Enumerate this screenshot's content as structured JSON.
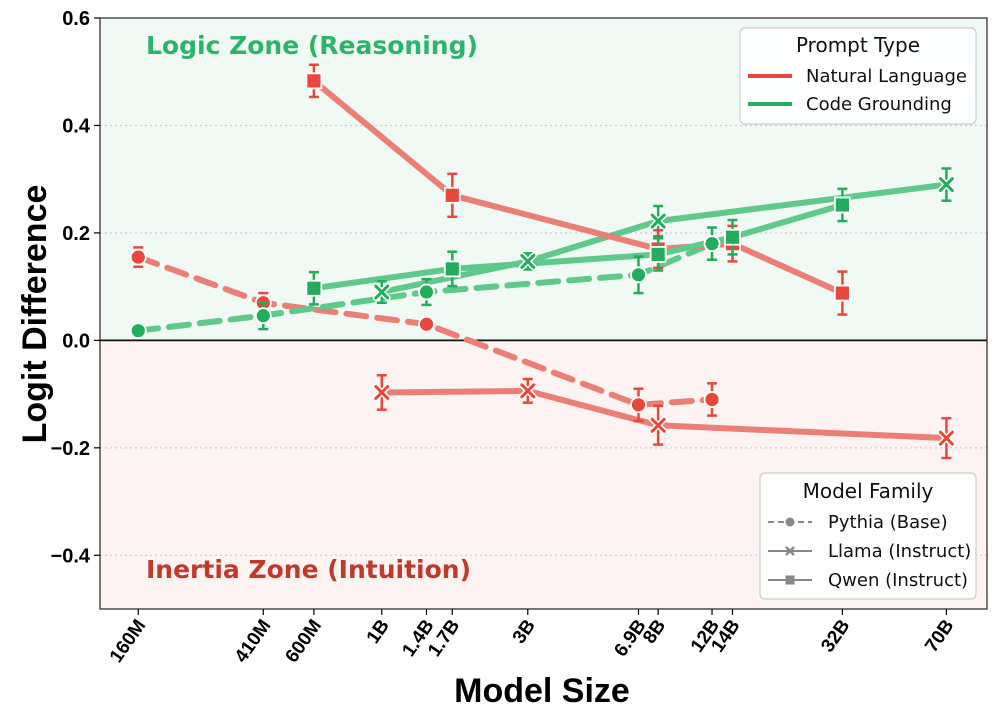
{
  "chart_data": {
    "type": "line",
    "xlabel": "Model Size",
    "ylabel": "Logit Difference",
    "ylim": [
      -0.5,
      0.6
    ],
    "yticks": [
      -0.4,
      -0.2,
      0.0,
      0.2,
      0.4,
      0.6
    ],
    "ytick_labels": [
      "−0.4",
      "−0.2",
      "0.0",
      "0.2",
      "0.4",
      "0.6"
    ],
    "x_scale": "log",
    "xlim_params": [
      120000000.0,
      95000000000.0
    ],
    "xticks": [
      {
        "label": "160M",
        "value": 160000000.0
      },
      {
        "label": "410M",
        "value": 410000000.0
      },
      {
        "label": "600M",
        "value": 600000000.0
      },
      {
        "label": "1B",
        "value": 1000000000.0
      },
      {
        "label": "1.4B",
        "value": 1400000000.0
      },
      {
        "label": "1.7B",
        "value": 1700000000.0
      },
      {
        "label": "3B",
        "value": 3000000000.0
      },
      {
        "label": "6.9B",
        "value": 6900000000.0
      },
      {
        "label": "8B",
        "value": 8000000000.0
      },
      {
        "label": "12B",
        "value": 12000000000.0
      },
      {
        "label": "14B",
        "value": 14000000000.0
      },
      {
        "label": "32B",
        "value": 32000000000.0
      },
      {
        "label": "70B",
        "value": 70000000000.0
      }
    ],
    "zones": {
      "logic": {
        "label": "Logic Zone (Reasoning)",
        "color": "#2db46b",
        "bg": "#f1f9f4"
      },
      "inertia": {
        "label": "Inertia Zone (Intuition)",
        "color": "#c0392b",
        "bg": "#fdf3f2"
      }
    },
    "colors": {
      "natural": "#e8483b",
      "code": "#22ad5c",
      "natural_line": "#ec7f75",
      "code_line": "#5ec98a",
      "family_gray": "#888888"
    },
    "legend_prompt": {
      "title": "Prompt Type",
      "items": [
        {
          "label": "Natural Language",
          "color": "#e8483b"
        },
        {
          "label": "Code Grounding",
          "color": "#22ad5c"
        }
      ]
    },
    "legend_family": {
      "title": "Model Family",
      "items": [
        {
          "label": "Pythia (Base)",
          "dash": true,
          "marker": "circle"
        },
        {
          "label": "Llama (Instruct)",
          "dash": false,
          "marker": "x"
        },
        {
          "label": "Qwen (Instruct)",
          "dash": false,
          "marker": "square"
        }
      ]
    },
    "series": [
      {
        "name": "Pythia (Base) – Natural Language",
        "family": "pythia",
        "prompt": "natural",
        "marker": "circle",
        "dash": true,
        "x": [
          160000000.0,
          410000000.0,
          1400000000.0,
          6900000000.0,
          12000000000.0
        ],
        "y": [
          0.155,
          0.07,
          0.03,
          -0.12,
          -0.11
        ],
        "err": [
          0.018,
          0.018,
          0.006,
          0.03,
          0.03
        ]
      },
      {
        "name": "Pythia (Base) – Code Grounding",
        "family": "pythia",
        "prompt": "code",
        "marker": "circle",
        "dash": true,
        "x": [
          160000000.0,
          410000000.0,
          1400000000.0,
          6900000000.0,
          12000000000.0
        ],
        "y": [
          0.018,
          0.046,
          0.09,
          0.122,
          0.18
        ],
        "err": [
          0.004,
          0.025,
          0.024,
          0.034,
          0.03
        ]
      },
      {
        "name": "Llama (Instruct) – Natural Language",
        "family": "llama",
        "prompt": "natural",
        "marker": "x",
        "dash": false,
        "x": [
          1000000000.0,
          3000000000.0,
          8000000000.0,
          70000000000.0
        ],
        "y": [
          -0.097,
          -0.094,
          -0.158,
          -0.182
        ],
        "err": [
          0.032,
          0.022,
          0.036,
          0.037
        ]
      },
      {
        "name": "Llama (Instruct) – Code Grounding",
        "family": "llama",
        "prompt": "code",
        "marker": "x",
        "dash": false,
        "x": [
          1000000000.0,
          3000000000.0,
          8000000000.0,
          70000000000.0
        ],
        "y": [
          0.09,
          0.147,
          0.222,
          0.29
        ],
        "err": [
          0.02,
          0.015,
          0.028,
          0.03
        ]
      },
      {
        "name": "Qwen (Instruct) – Natural Language",
        "family": "qwen",
        "prompt": "natural",
        "marker": "square",
        "dash": false,
        "x": [
          600000000.0,
          1700000000.0,
          8000000000.0,
          14000000000.0,
          32000000000.0
        ],
        "y": [
          0.483,
          0.27,
          0.17,
          0.18,
          0.088
        ],
        "err": [
          0.03,
          0.04,
          0.035,
          0.033,
          0.04
        ]
      },
      {
        "name": "Qwen (Instruct) – Code Grounding",
        "family": "qwen",
        "prompt": "code",
        "marker": "square",
        "dash": false,
        "x": [
          600000000.0,
          1700000000.0,
          8000000000.0,
          14000000000.0,
          32000000000.0
        ],
        "y": [
          0.097,
          0.133,
          0.16,
          0.192,
          0.252
        ],
        "err": [
          0.03,
          0.032,
          0.03,
          0.032,
          0.03
        ]
      }
    ]
  }
}
